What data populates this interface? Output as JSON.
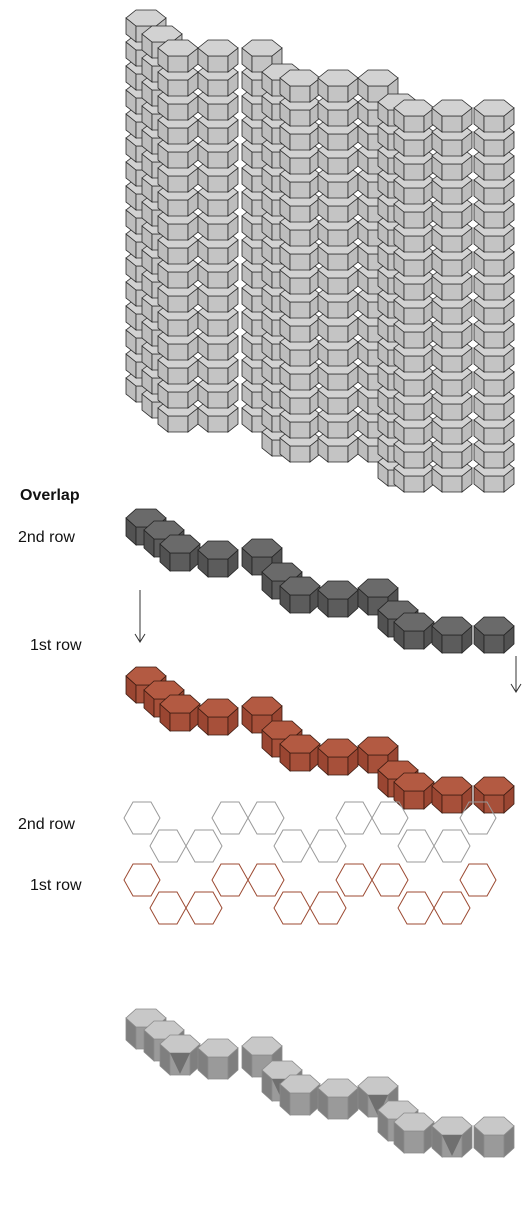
{
  "labels": {
    "overlap": "Overlap",
    "row2_top": "2nd row",
    "row1_top": "1st row",
    "row2_bottom": "2nd row",
    "row1_bottom": "1st row"
  },
  "colors": {
    "stack_top": "#d2d2d2",
    "stack_front": "#c4c4c4",
    "stack_stroke": "#2a2a2a",
    "row2_fill": "#5c5c5c",
    "row2_top": "#6a6a6a",
    "row1_fill": "#a7503a",
    "row1_top": "#b35a42",
    "outline_row2": "#9a9a9a",
    "outline_row1": "#9c4a32",
    "merged_top": "#c8c8c8",
    "merged_side": "#9a9a9a",
    "merged_dark": "#7f7f7f",
    "arrow": "#333333"
  },
  "icons": [
    "down-arrow-icon"
  ]
}
